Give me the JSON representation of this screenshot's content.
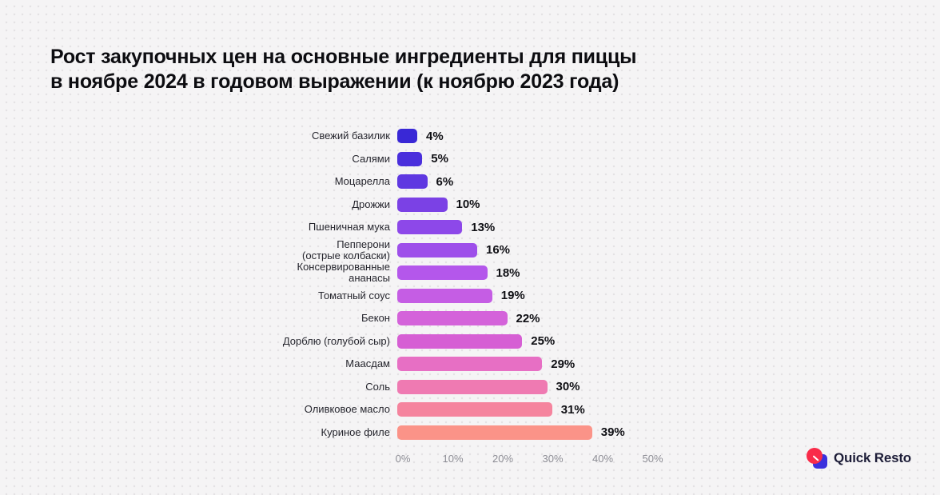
{
  "page": {
    "background": "#f5f4f5"
  },
  "header": {
    "title": "Рост закупочных цен на основные ингредиенты для пиццы\nв ноябре 2024 в годовом выражении (к ноябрю 2023 года)"
  },
  "chart_data": {
    "type": "bar",
    "orientation": "horizontal",
    "title": "Рост закупочных цен на основные ингредиенты для пиццы в ноябре 2024 в годовом выражении (к ноябрю 2023 года)",
    "categories": [
      "Свежий базилик",
      "Салями",
      "Моцарелла",
      "Дрожжи",
      "Пшеничная мука",
      "Пепперони\n(острые колбаски)",
      "Консервированные\nананасы",
      "Томатный соус",
      "Бекон",
      "Дорблю (голубой сыр)",
      "Маасдам",
      "Соль",
      "Оливковое масло",
      "Куриное филе"
    ],
    "values": [
      4,
      5,
      6,
      10,
      13,
      16,
      18,
      19,
      22,
      25,
      29,
      30,
      31,
      39
    ],
    "value_labels": [
      "4%",
      "5%",
      "6%",
      "10%",
      "13%",
      "16%",
      "18%",
      "19%",
      "22%",
      "25%",
      "29%",
      "30%",
      "31%",
      "39%"
    ],
    "bar_colors": [
      "#3928d6",
      "#4a2fdc",
      "#5f38e1",
      "#7b41e5",
      "#8d48e9",
      "#9e4fea",
      "#b457eb",
      "#c55de4",
      "#d463da",
      "#d65fd4",
      "#e76fc4",
      "#ef7ab2",
      "#f5849e",
      "#fb9388"
    ],
    "x_ticks": [
      "0%",
      "10%",
      "20%",
      "30%",
      "40%",
      "50%"
    ],
    "x_tick_values": [
      0,
      10,
      20,
      30,
      40,
      50
    ],
    "xlim": [
      0,
      50
    ],
    "xlabel": "",
    "ylabel": "",
    "grid": false,
    "legend": "none"
  },
  "footer": {
    "logo_text": "Quick Resto"
  }
}
